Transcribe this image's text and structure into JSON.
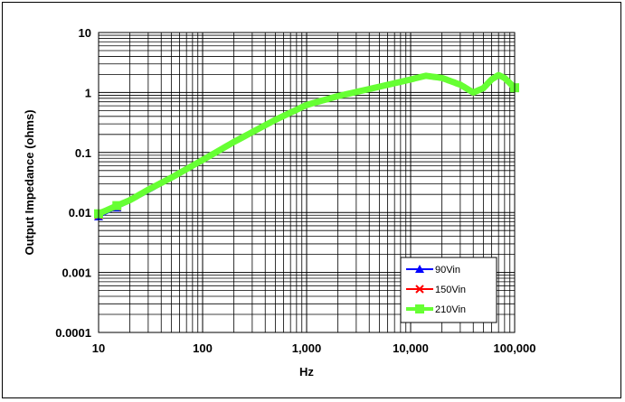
{
  "chart_data": {
    "type": "line",
    "title": "",
    "xlabel": "Hz",
    "ylabel": "Output Impedance (ohms)",
    "xscale": "log",
    "yscale": "log",
    "xlim": [
      10,
      100000
    ],
    "ylim": [
      0.0001,
      10
    ],
    "grid": true,
    "legend_position": "bottom-right",
    "x_ticks": [
      {
        "value": 10,
        "label": "10"
      },
      {
        "value": 100,
        "label": "100"
      },
      {
        "value": 1000,
        "label": "1,000"
      },
      {
        "value": 10000,
        "label": "10,000"
      },
      {
        "value": 100000,
        "label": "100,000"
      }
    ],
    "y_ticks": [
      {
        "value": 10,
        "label": "10"
      },
      {
        "value": 1,
        "label": "1"
      },
      {
        "value": 0.1,
        "label": "0.1"
      },
      {
        "value": 0.01,
        "label": "0.01"
      },
      {
        "value": 0.001,
        "label": "0.001"
      },
      {
        "value": 0.0001,
        "label": "0.0001"
      }
    ],
    "series": [
      {
        "name": "90Vin",
        "color": "#0000ff",
        "marker": "triangle",
        "x": [
          10,
          15,
          20,
          30,
          50,
          100,
          200,
          500,
          1000,
          2000,
          5000,
          10000,
          14000,
          20000,
          30000,
          40000,
          50000,
          60000,
          70000,
          80000,
          100000
        ],
        "y": [
          0.0085,
          0.012,
          0.015,
          0.022,
          0.036,
          0.071,
          0.14,
          0.33,
          0.6,
          0.85,
          1.2,
          1.6,
          1.85,
          1.7,
          1.3,
          1.0,
          1.15,
          1.6,
          1.9,
          1.7,
          1.2
        ]
      },
      {
        "name": "150Vin",
        "color": "#ff0000",
        "marker": "x",
        "x": [
          10,
          15,
          20,
          30,
          50,
          100,
          200,
          500,
          1000,
          2000,
          5000,
          10000,
          14000,
          20000,
          30000,
          40000,
          50000,
          60000,
          70000,
          80000,
          100000
        ],
        "y": [
          0.009,
          0.0125,
          0.0155,
          0.023,
          0.037,
          0.073,
          0.145,
          0.34,
          0.61,
          0.86,
          1.22,
          1.62,
          1.87,
          1.72,
          1.32,
          1.0,
          1.15,
          1.62,
          1.92,
          1.72,
          1.2
        ]
      },
      {
        "name": "210Vin",
        "color": "#66ff33",
        "marker": "square",
        "x": [
          10,
          15,
          20,
          30,
          50,
          100,
          200,
          500,
          1000,
          2000,
          5000,
          10000,
          14000,
          20000,
          30000,
          40000,
          50000,
          60000,
          70000,
          80000,
          100000
        ],
        "y": [
          0.0095,
          0.013,
          0.016,
          0.024,
          0.038,
          0.075,
          0.15,
          0.35,
          0.62,
          0.87,
          1.25,
          1.65,
          1.9,
          1.75,
          1.35,
          1.0,
          1.18,
          1.65,
          1.95,
          1.75,
          1.2
        ]
      }
    ]
  }
}
